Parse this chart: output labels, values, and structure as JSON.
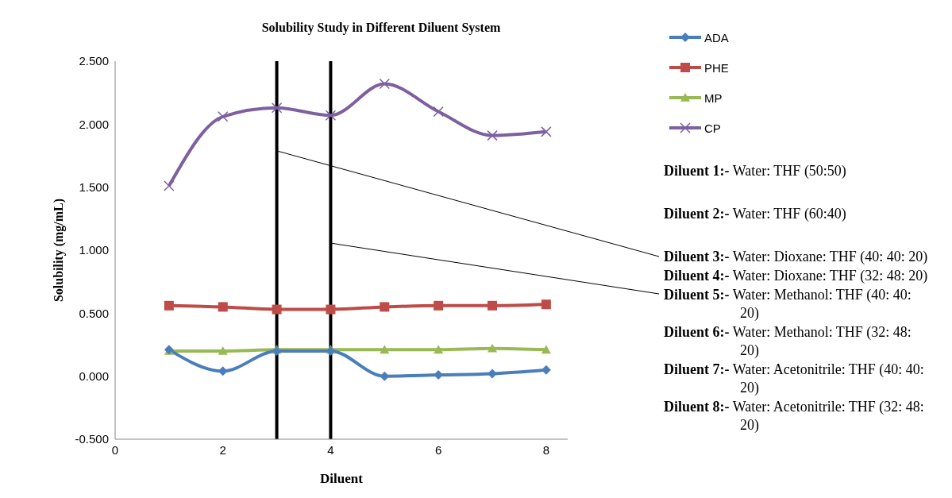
{
  "chart_data": {
    "type": "line",
    "title": "Solubility Study in Different Diluent System",
    "xlabel": "Diluent",
    "ylabel": "Solubility (mg/mL)",
    "x": [
      1,
      2,
      3,
      4,
      5,
      6,
      7,
      8
    ],
    "series": [
      {
        "name": "ADA",
        "color": "#4a7ebb",
        "marker": "diamond",
        "values": [
          0.21,
          0.04,
          0.2,
          0.2,
          0.0,
          0.01,
          0.02,
          0.05
        ]
      },
      {
        "name": "PHE",
        "color": "#be4b48",
        "marker": "square",
        "values": [
          0.56,
          0.55,
          0.53,
          0.53,
          0.55,
          0.56,
          0.56,
          0.57
        ]
      },
      {
        "name": "MP",
        "color": "#98b954",
        "marker": "triangle",
        "values": [
          0.2,
          0.2,
          0.21,
          0.21,
          0.21,
          0.21,
          0.22,
          0.21
        ]
      },
      {
        "name": "CP",
        "color": "#7d60a0",
        "marker": "cross",
        "values": [
          1.51,
          2.06,
          2.13,
          2.07,
          2.32,
          2.1,
          1.91,
          1.94
        ]
      }
    ],
    "xlim": [
      0,
      8.4
    ],
    "xticks": [
      0,
      2,
      4,
      6,
      8
    ],
    "ylim": [
      -0.5,
      2.5
    ],
    "yticks": [
      {
        "value": -0.5,
        "label": "-0.500"
      },
      {
        "value": 0,
        "label": "0.000"
      },
      {
        "value": 0.5,
        "label": "0.500"
      },
      {
        "value": 1,
        "label": "1.000"
      },
      {
        "value": 1.5,
        "label": "1.500"
      },
      {
        "value": 2,
        "label": "2.000"
      },
      {
        "value": 2.5,
        "label": "2.500"
      }
    ],
    "ref_lines": [
      {
        "axis": "x",
        "value": 3,
        "color": "#000000"
      },
      {
        "axis": "x",
        "value": 4,
        "color": "#000000"
      }
    ],
    "grid": false,
    "legend": "top right",
    "annotations": [
      "Diluent 1:- Water: THF (50:50)",
      "Diluent 2:- Water: THF (60:40)",
      "Diluent 3:- Water: Dioxane: THF (40: 40: 20)",
      "Diluent 4:- Water: Dioxane: THF (32: 48: 20)",
      "Diluent 5:- Water: Methanol: THF (40: 40: 20)",
      "Diluent 6:- Water: Methanol: THF (32: 48: 20)",
      "Diluent 7:- Water: Acetonitrile: THF (40: 40: 20)",
      "Diluent 8:- Water: Acetonitrile: THF (32: 48: 20)"
    ]
  }
}
